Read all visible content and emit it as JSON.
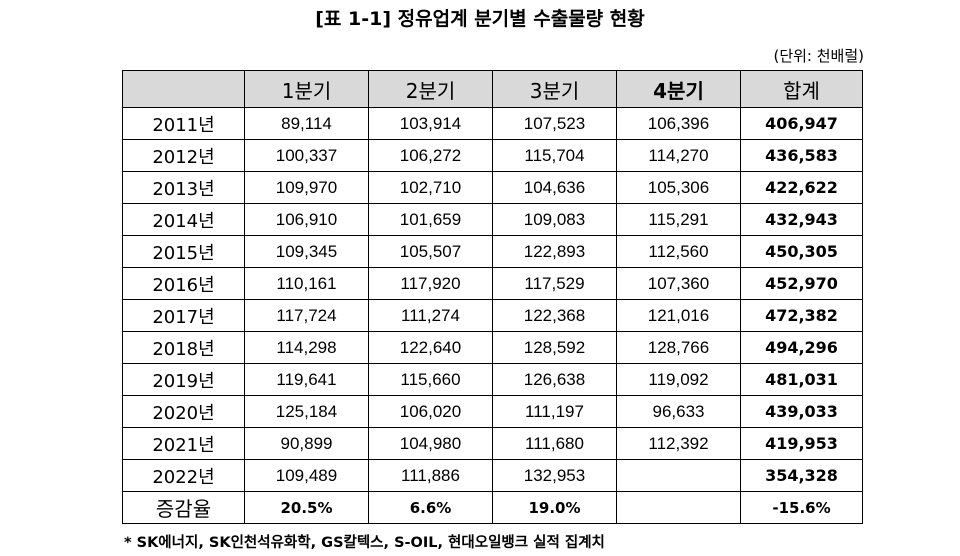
{
  "title": "[표 1-1] 정유업계 분기별 수출물량 현황",
  "unit": "(단위: 천배럴)",
  "table": {
    "headers": [
      "",
      "1분기",
      "2분기",
      "3분기",
      "4분기",
      "합계"
    ],
    "rows": [
      {
        "label": "2011년",
        "values": [
          "89,114",
          "103,914",
          "107,523",
          "106,396",
          "406,947"
        ]
      },
      {
        "label": "2012년",
        "values": [
          "100,337",
          "106,272",
          "115,704",
          "114,270",
          "436,583"
        ]
      },
      {
        "label": "2013년",
        "values": [
          "109,970",
          "102,710",
          "104,636",
          "105,306",
          "422,622"
        ]
      },
      {
        "label": "2014년",
        "values": [
          "106,910",
          "101,659",
          "109,083",
          "115,291",
          "432,943"
        ]
      },
      {
        "label": "2015년",
        "values": [
          "109,345",
          "105,507",
          "122,893",
          "112,560",
          "450,305"
        ]
      },
      {
        "label": "2016년",
        "values": [
          "110,161",
          "117,920",
          "117,529",
          "107,360",
          "452,970"
        ]
      },
      {
        "label": "2017년",
        "values": [
          "117,724",
          "111,274",
          "122,368",
          "121,016",
          "472,382"
        ]
      },
      {
        "label": "2018년",
        "values": [
          "114,298",
          "122,640",
          "128,592",
          "128,766",
          "494,296"
        ]
      },
      {
        "label": "2019년",
        "values": [
          "119,641",
          "115,660",
          "126,638",
          "119,092",
          "481,031"
        ]
      },
      {
        "label": "2020년",
        "values": [
          "125,184",
          "106,020",
          "111,197",
          "96,633",
          "439,033"
        ]
      },
      {
        "label": "2021년",
        "values": [
          "90,899",
          "104,980",
          "111,680",
          "112,392",
          "419,953"
        ]
      },
      {
        "label": "2022년",
        "values": [
          "109,489",
          "111,886",
          "132,953",
          "",
          "354,328"
        ]
      }
    ],
    "growth": {
      "label": "증감율",
      "values": [
        "20.5%",
        "6.6%",
        "19.0%",
        "",
        "-15.6%"
      ]
    }
  },
  "note": "* SK에너지, SK인천석유화학, GS칼텍스, S-OIL, 현대오일뱅크 실적 집계치"
}
